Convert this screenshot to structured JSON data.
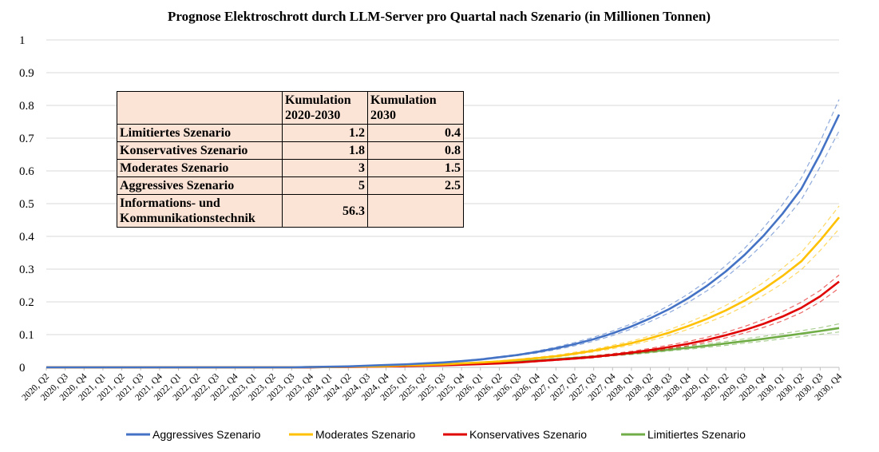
{
  "chart_data": {
    "type": "line",
    "title": "Prognose Elektroschrott durch LLM-Server pro Quartal nach Szenario (in Millionen Tonnen)",
    "xlabel": "",
    "ylabel": "",
    "ylim": [
      0,
      1
    ],
    "yticks": [
      "0",
      "0.1",
      "0.2",
      "0.3",
      "0.4",
      "0.5",
      "0.6",
      "0.7",
      "0.8",
      "0.9",
      "1"
    ],
    "grid": true,
    "legend_position": "bottom",
    "categories": [
      "2020, Q2",
      "2020, Q3",
      "2020, Q4",
      "2021, Q1",
      "2021, Q2",
      "2021, Q3",
      "2021, Q4",
      "2022, Q1",
      "2022, Q2",
      "2022, Q3",
      "2022, Q4",
      "2023, Q1",
      "2023, Q2",
      "2023, Q3",
      "2023, Q4",
      "2024, Q1",
      "2024, Q2",
      "2024, Q3",
      "2024, Q4",
      "2025, Q1",
      "2025, Q2",
      "2025, Q3",
      "2025, Q4",
      "2026, Q1",
      "2026, Q2",
      "2026, Q3",
      "2026, Q4",
      "2027, Q1",
      "2027, Q2",
      "2027, Q3",
      "2027, Q4",
      "2028, Q1",
      "2028, Q2",
      "2028, Q3",
      "2028, Q4",
      "2029, Q1",
      "2029, Q2",
      "2029, Q3",
      "2029, Q4",
      "2030, Q1",
      "2030, Q2",
      "2030, Q3",
      "2030, Q4"
    ],
    "series": [
      {
        "name": "Aggressives Szenario",
        "color": "#4472c4",
        "values": [
          0,
          0,
          0,
          0,
          0,
          0,
          0,
          0,
          0,
          0,
          0,
          0,
          0,
          0,
          0.001,
          0.002,
          0.003,
          0.005,
          0.007,
          0.009,
          0.012,
          0.015,
          0.019,
          0.024,
          0.031,
          0.038,
          0.047,
          0.058,
          0.071,
          0.086,
          0.104,
          0.125,
          0.15,
          0.178,
          0.211,
          0.249,
          0.293,
          0.344,
          0.402,
          0.469,
          0.545,
          0.652,
          0.772
        ],
        "upper": [
          0,
          0,
          0,
          0,
          0,
          0,
          0,
          0,
          0,
          0,
          0,
          0,
          0,
          0,
          0.001,
          0.002,
          0.003,
          0.005,
          0.007,
          0.01,
          0.013,
          0.016,
          0.02,
          0.026,
          0.033,
          0.04,
          0.05,
          0.062,
          0.076,
          0.092,
          0.111,
          0.133,
          0.159,
          0.189,
          0.224,
          0.264,
          0.311,
          0.364,
          0.426,
          0.497,
          0.578,
          0.69,
          0.818
        ],
        "lower": [
          0,
          0,
          0,
          0,
          0,
          0,
          0,
          0,
          0,
          0,
          0,
          0,
          0,
          0,
          0.001,
          0.002,
          0.003,
          0.004,
          0.006,
          0.009,
          0.011,
          0.014,
          0.018,
          0.023,
          0.029,
          0.036,
          0.044,
          0.054,
          0.066,
          0.08,
          0.097,
          0.117,
          0.14,
          0.167,
          0.198,
          0.234,
          0.275,
          0.323,
          0.378,
          0.441,
          0.512,
          0.613,
          0.722
        ]
      },
      {
        "name": "Moderates Szenario",
        "color": "#ffc000",
        "values": [
          0,
          0,
          0,
          0,
          0,
          0,
          0,
          0,
          0,
          0,
          0,
          0,
          0,
          0,
          0.001,
          0.001,
          0.002,
          0.003,
          0.004,
          0.006,
          0.007,
          0.009,
          0.012,
          0.015,
          0.018,
          0.023,
          0.028,
          0.034,
          0.042,
          0.051,
          0.062,
          0.074,
          0.089,
          0.106,
          0.126,
          0.148,
          0.174,
          0.204,
          0.239,
          0.279,
          0.324,
          0.388,
          0.458
        ],
        "upper": [
          0,
          0,
          0,
          0,
          0,
          0,
          0,
          0,
          0,
          0,
          0,
          0,
          0,
          0,
          0.001,
          0.001,
          0.002,
          0.003,
          0.005,
          0.006,
          0.008,
          0.01,
          0.013,
          0.016,
          0.02,
          0.025,
          0.031,
          0.037,
          0.046,
          0.055,
          0.067,
          0.08,
          0.096,
          0.115,
          0.137,
          0.161,
          0.189,
          0.222,
          0.259,
          0.303,
          0.351,
          0.419,
          0.493
        ],
        "lower": [
          0,
          0,
          0,
          0,
          0,
          0,
          0,
          0,
          0,
          0,
          0,
          0,
          0,
          0,
          0.001,
          0.001,
          0.002,
          0.003,
          0.004,
          0.005,
          0.007,
          0.008,
          0.011,
          0.014,
          0.017,
          0.021,
          0.026,
          0.031,
          0.039,
          0.047,
          0.057,
          0.068,
          0.082,
          0.097,
          0.116,
          0.136,
          0.159,
          0.187,
          0.22,
          0.256,
          0.298,
          0.357,
          0.423
        ]
      },
      {
        "name": "Konservatives Szenario",
        "color": "#e00000",
        "values": [
          0,
          0,
          0,
          0,
          0,
          0,
          0,
          0,
          0,
          0,
          0,
          0,
          0,
          0,
          0,
          0.001,
          0.001,
          0.002,
          0.003,
          0.004,
          0.005,
          0.006,
          0.008,
          0.01,
          0.012,
          0.015,
          0.019,
          0.023,
          0.027,
          0.032,
          0.038,
          0.045,
          0.053,
          0.062,
          0.072,
          0.084,
          0.098,
          0.114,
          0.133,
          0.155,
          0.182,
          0.217,
          0.262
        ],
        "upper": [
          0,
          0,
          0,
          0,
          0,
          0,
          0,
          0,
          0,
          0,
          0,
          0,
          0,
          0,
          0,
          0.001,
          0.001,
          0.002,
          0.003,
          0.004,
          0.005,
          0.007,
          0.009,
          0.011,
          0.013,
          0.016,
          0.02,
          0.025,
          0.03,
          0.035,
          0.042,
          0.049,
          0.058,
          0.068,
          0.079,
          0.092,
          0.107,
          0.125,
          0.146,
          0.17,
          0.199,
          0.235,
          0.282
        ],
        "lower": [
          0,
          0,
          0,
          0,
          0,
          0,
          0,
          0,
          0,
          0,
          0,
          0,
          0,
          0,
          0,
          0.001,
          0.001,
          0.002,
          0.003,
          0.004,
          0.005,
          0.006,
          0.007,
          0.009,
          0.011,
          0.014,
          0.017,
          0.021,
          0.025,
          0.029,
          0.035,
          0.041,
          0.048,
          0.056,
          0.066,
          0.077,
          0.09,
          0.105,
          0.122,
          0.142,
          0.167,
          0.2,
          0.242
        ]
      },
      {
        "name": "Limitiertes Szenario",
        "color": "#70ad47",
        "values": [
          0,
          0,
          0,
          0,
          0,
          0,
          0,
          0,
          0,
          0,
          0,
          0,
          0,
          0,
          0,
          0.001,
          0.002,
          0.002,
          0.003,
          0.005,
          0.006,
          0.008,
          0.01,
          0.012,
          0.015,
          0.018,
          0.021,
          0.025,
          0.029,
          0.033,
          0.038,
          0.043,
          0.048,
          0.054,
          0.06,
          0.066,
          0.073,
          0.08,
          0.087,
          0.095,
          0.103,
          0.111,
          0.12
        ],
        "upper": [
          0,
          0,
          0,
          0,
          0,
          0,
          0,
          0,
          0,
          0,
          0,
          0,
          0,
          0,
          0,
          0.001,
          0.002,
          0.003,
          0.004,
          0.005,
          0.007,
          0.009,
          0.011,
          0.013,
          0.016,
          0.019,
          0.023,
          0.027,
          0.031,
          0.036,
          0.041,
          0.047,
          0.052,
          0.058,
          0.065,
          0.072,
          0.079,
          0.087,
          0.095,
          0.103,
          0.112,
          0.121,
          0.133
        ],
        "lower": [
          0,
          0,
          0,
          0,
          0,
          0,
          0,
          0,
          0,
          0,
          0,
          0,
          0,
          0,
          0,
          0.001,
          0.001,
          0.002,
          0.003,
          0.004,
          0.005,
          0.007,
          0.009,
          0.011,
          0.014,
          0.016,
          0.019,
          0.023,
          0.027,
          0.03,
          0.035,
          0.039,
          0.044,
          0.05,
          0.055,
          0.061,
          0.067,
          0.074,
          0.08,
          0.087,
          0.094,
          0.101,
          0.108
        ]
      }
    ]
  },
  "table": {
    "headers": [
      "",
      "Kumulation 2020-2030",
      "Kumulation 2030"
    ],
    "rows": [
      {
        "label": "Limitiertes Szenario",
        "cumulative": "1.2",
        "year2030": "0.4"
      },
      {
        "label": "Konservatives Szenario",
        "cumulative": "1.8",
        "year2030": "0.8"
      },
      {
        "label": "Moderates Szenario",
        "cumulative": "3",
        "year2030": "1.5"
      },
      {
        "label": "Aggressives Szenario",
        "cumulative": "5",
        "year2030": "2.5"
      },
      {
        "label": "Informations- und Kommunikationstechnik",
        "cumulative": "56.3",
        "year2030": ""
      }
    ]
  }
}
